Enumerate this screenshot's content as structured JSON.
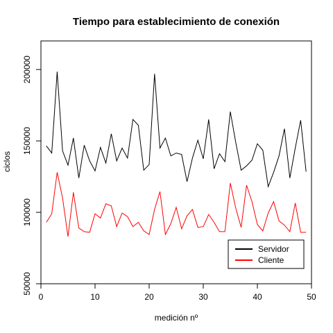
{
  "chart_data": {
    "type": "line",
    "title": "Tiempo para establecimiento de conexión",
    "xlabel": "medición nº",
    "ylabel": "ciclos",
    "xlim": [
      0,
      50
    ],
    "ylim": [
      50000,
      220000
    ],
    "xticks": [
      0,
      10,
      20,
      30,
      40,
      50
    ],
    "yticks": [
      50000,
      100000,
      150000,
      200000
    ],
    "x": [
      1,
      2,
      3,
      4,
      5,
      6,
      7,
      8,
      9,
      10,
      11,
      12,
      13,
      14,
      15,
      16,
      17,
      18,
      19,
      20,
      21,
      22,
      23,
      24,
      25,
      26,
      27,
      28,
      29,
      30,
      31,
      32,
      33,
      34,
      35,
      36,
      37,
      38,
      39,
      40,
      41,
      42,
      43,
      44,
      45,
      46,
      47,
      48,
      49
    ],
    "series": [
      {
        "name": "Servidor",
        "color": "#000000",
        "values": [
          146500,
          141500,
          198500,
          143000,
          133000,
          152000,
          124000,
          147000,
          136000,
          129000,
          145500,
          134500,
          155000,
          136000,
          145000,
          138000,
          165000,
          161000,
          129500,
          133500,
          197000,
          145000,
          152000,
          139500,
          141500,
          140500,
          121500,
          138000,
          150500,
          137500,
          165000,
          130500,
          141000,
          135500,
          170500,
          149000,
          129500,
          132500,
          136500,
          148000,
          143500,
          118000,
          128000,
          139500,
          158500,
          124000,
          145000,
          164500,
          128500
        ]
      },
      {
        "name": "Cliente",
        "color": "#ff0000",
        "values": [
          93000,
          99000,
          128000,
          110000,
          83000,
          114000,
          89000,
          86500,
          86000,
          99000,
          96000,
          106000,
          104500,
          90000,
          99500,
          97000,
          90000,
          93000,
          87000,
          84500,
          102000,
          114500,
          84500,
          92000,
          103500,
          88500,
          97500,
          102000,
          89500,
          90000,
          98500,
          93000,
          86500,
          86500,
          120500,
          103000,
          89500,
          119000,
          107500,
          91500,
          87000,
          99500,
          107500,
          94000,
          91000,
          86500,
          106500,
          86000,
          86000
        ]
      }
    ],
    "legend_position": "bottom-right",
    "grid": false
  }
}
